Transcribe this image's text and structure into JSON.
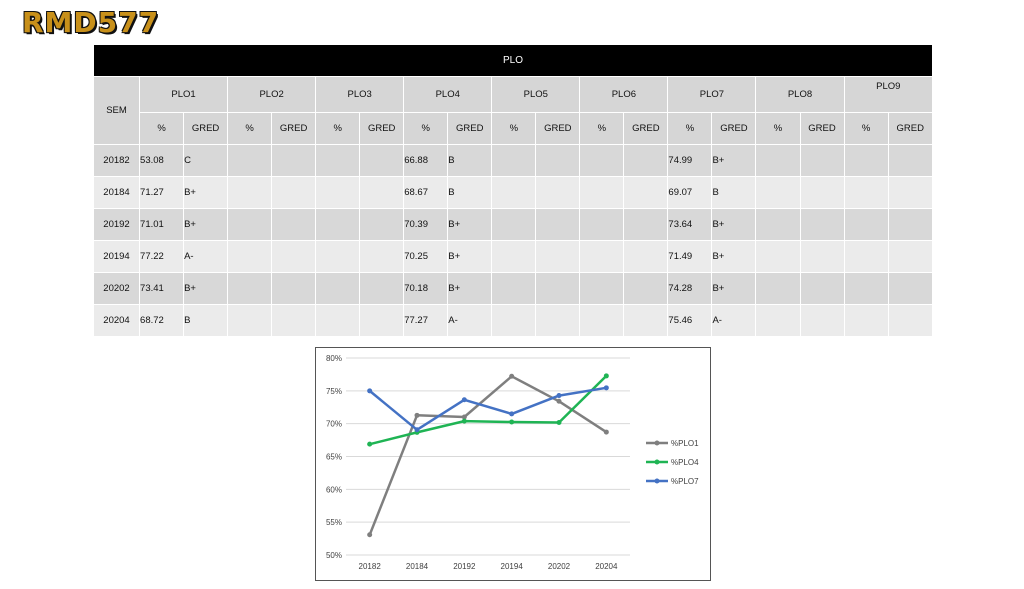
{
  "logo_text": "RMD577",
  "table": {
    "title": "PLO",
    "sem_label": "SEM",
    "plo_headers": [
      "PLO1",
      "PLO2",
      "PLO3",
      "PLO4",
      "PLO5",
      "PLO6",
      "PLO7",
      "PLO8",
      "PLO9"
    ],
    "sub_headers": [
      "%",
      "GRED"
    ],
    "rows": [
      {
        "sem": "20182",
        "cells": [
          [
            "53.08",
            "C"
          ],
          [
            "",
            ""
          ],
          [
            "",
            ""
          ],
          [
            "66.88",
            "B"
          ],
          [
            "",
            ""
          ],
          [
            "",
            ""
          ],
          [
            "74.99",
            "B+"
          ],
          [
            "",
            ""
          ],
          [
            "",
            ""
          ]
        ]
      },
      {
        "sem": "20184",
        "cells": [
          [
            "71.27",
            "B+"
          ],
          [
            "",
            ""
          ],
          [
            "",
            ""
          ],
          [
            "68.67",
            "B"
          ],
          [
            "",
            ""
          ],
          [
            "",
            ""
          ],
          [
            "69.07",
            "B"
          ],
          [
            "",
            ""
          ],
          [
            "",
            ""
          ]
        ]
      },
      {
        "sem": "20192",
        "cells": [
          [
            "71.01",
            "B+"
          ],
          [
            "",
            ""
          ],
          [
            "",
            ""
          ],
          [
            "70.39",
            "B+"
          ],
          [
            "",
            ""
          ],
          [
            "",
            ""
          ],
          [
            "73.64",
            "B+"
          ],
          [
            "",
            ""
          ],
          [
            "",
            ""
          ]
        ]
      },
      {
        "sem": "20194",
        "cells": [
          [
            "77.22",
            "A-"
          ],
          [
            "",
            ""
          ],
          [
            "",
            ""
          ],
          [
            "70.25",
            "B+"
          ],
          [
            "",
            ""
          ],
          [
            "",
            ""
          ],
          [
            "71.49",
            "B+"
          ],
          [
            "",
            ""
          ],
          [
            "",
            ""
          ]
        ]
      },
      {
        "sem": "20202",
        "cells": [
          [
            "73.41",
            "B+"
          ],
          [
            "",
            ""
          ],
          [
            "",
            ""
          ],
          [
            "70.18",
            "B+"
          ],
          [
            "",
            ""
          ],
          [
            "",
            ""
          ],
          [
            "74.28",
            "B+"
          ],
          [
            "",
            ""
          ],
          [
            "",
            ""
          ]
        ]
      },
      {
        "sem": "20204",
        "cells": [
          [
            "68.72",
            "B"
          ],
          [
            "",
            ""
          ],
          [
            "",
            ""
          ],
          [
            "77.27",
            "A-"
          ],
          [
            "",
            ""
          ],
          [
            "",
            ""
          ],
          [
            "75.46",
            "A-"
          ],
          [
            "",
            ""
          ],
          [
            "",
            ""
          ]
        ]
      }
    ]
  },
  "chart_data": {
    "type": "line",
    "categories": [
      "20182",
      "20184",
      "20192",
      "20194",
      "20202",
      "20204"
    ],
    "y_ticks": [
      "50%",
      "55%",
      "60%",
      "65%",
      "70%",
      "75%",
      "80%"
    ],
    "ylim": [
      50,
      80
    ],
    "grid": true,
    "legend_position": "right",
    "series": [
      {
        "name": "%PLO1",
        "color": "#7f7f7f",
        "values": [
          53.08,
          71.27,
          71.01,
          77.22,
          73.41,
          68.72
        ]
      },
      {
        "name": "%PLO4",
        "color": "#1fb454",
        "values": [
          66.88,
          68.67,
          70.39,
          70.25,
          70.18,
          77.27
        ]
      },
      {
        "name": "%PLO7",
        "color": "#4472c4",
        "values": [
          74.99,
          69.07,
          73.64,
          71.49,
          74.28,
          75.46
        ]
      }
    ]
  }
}
